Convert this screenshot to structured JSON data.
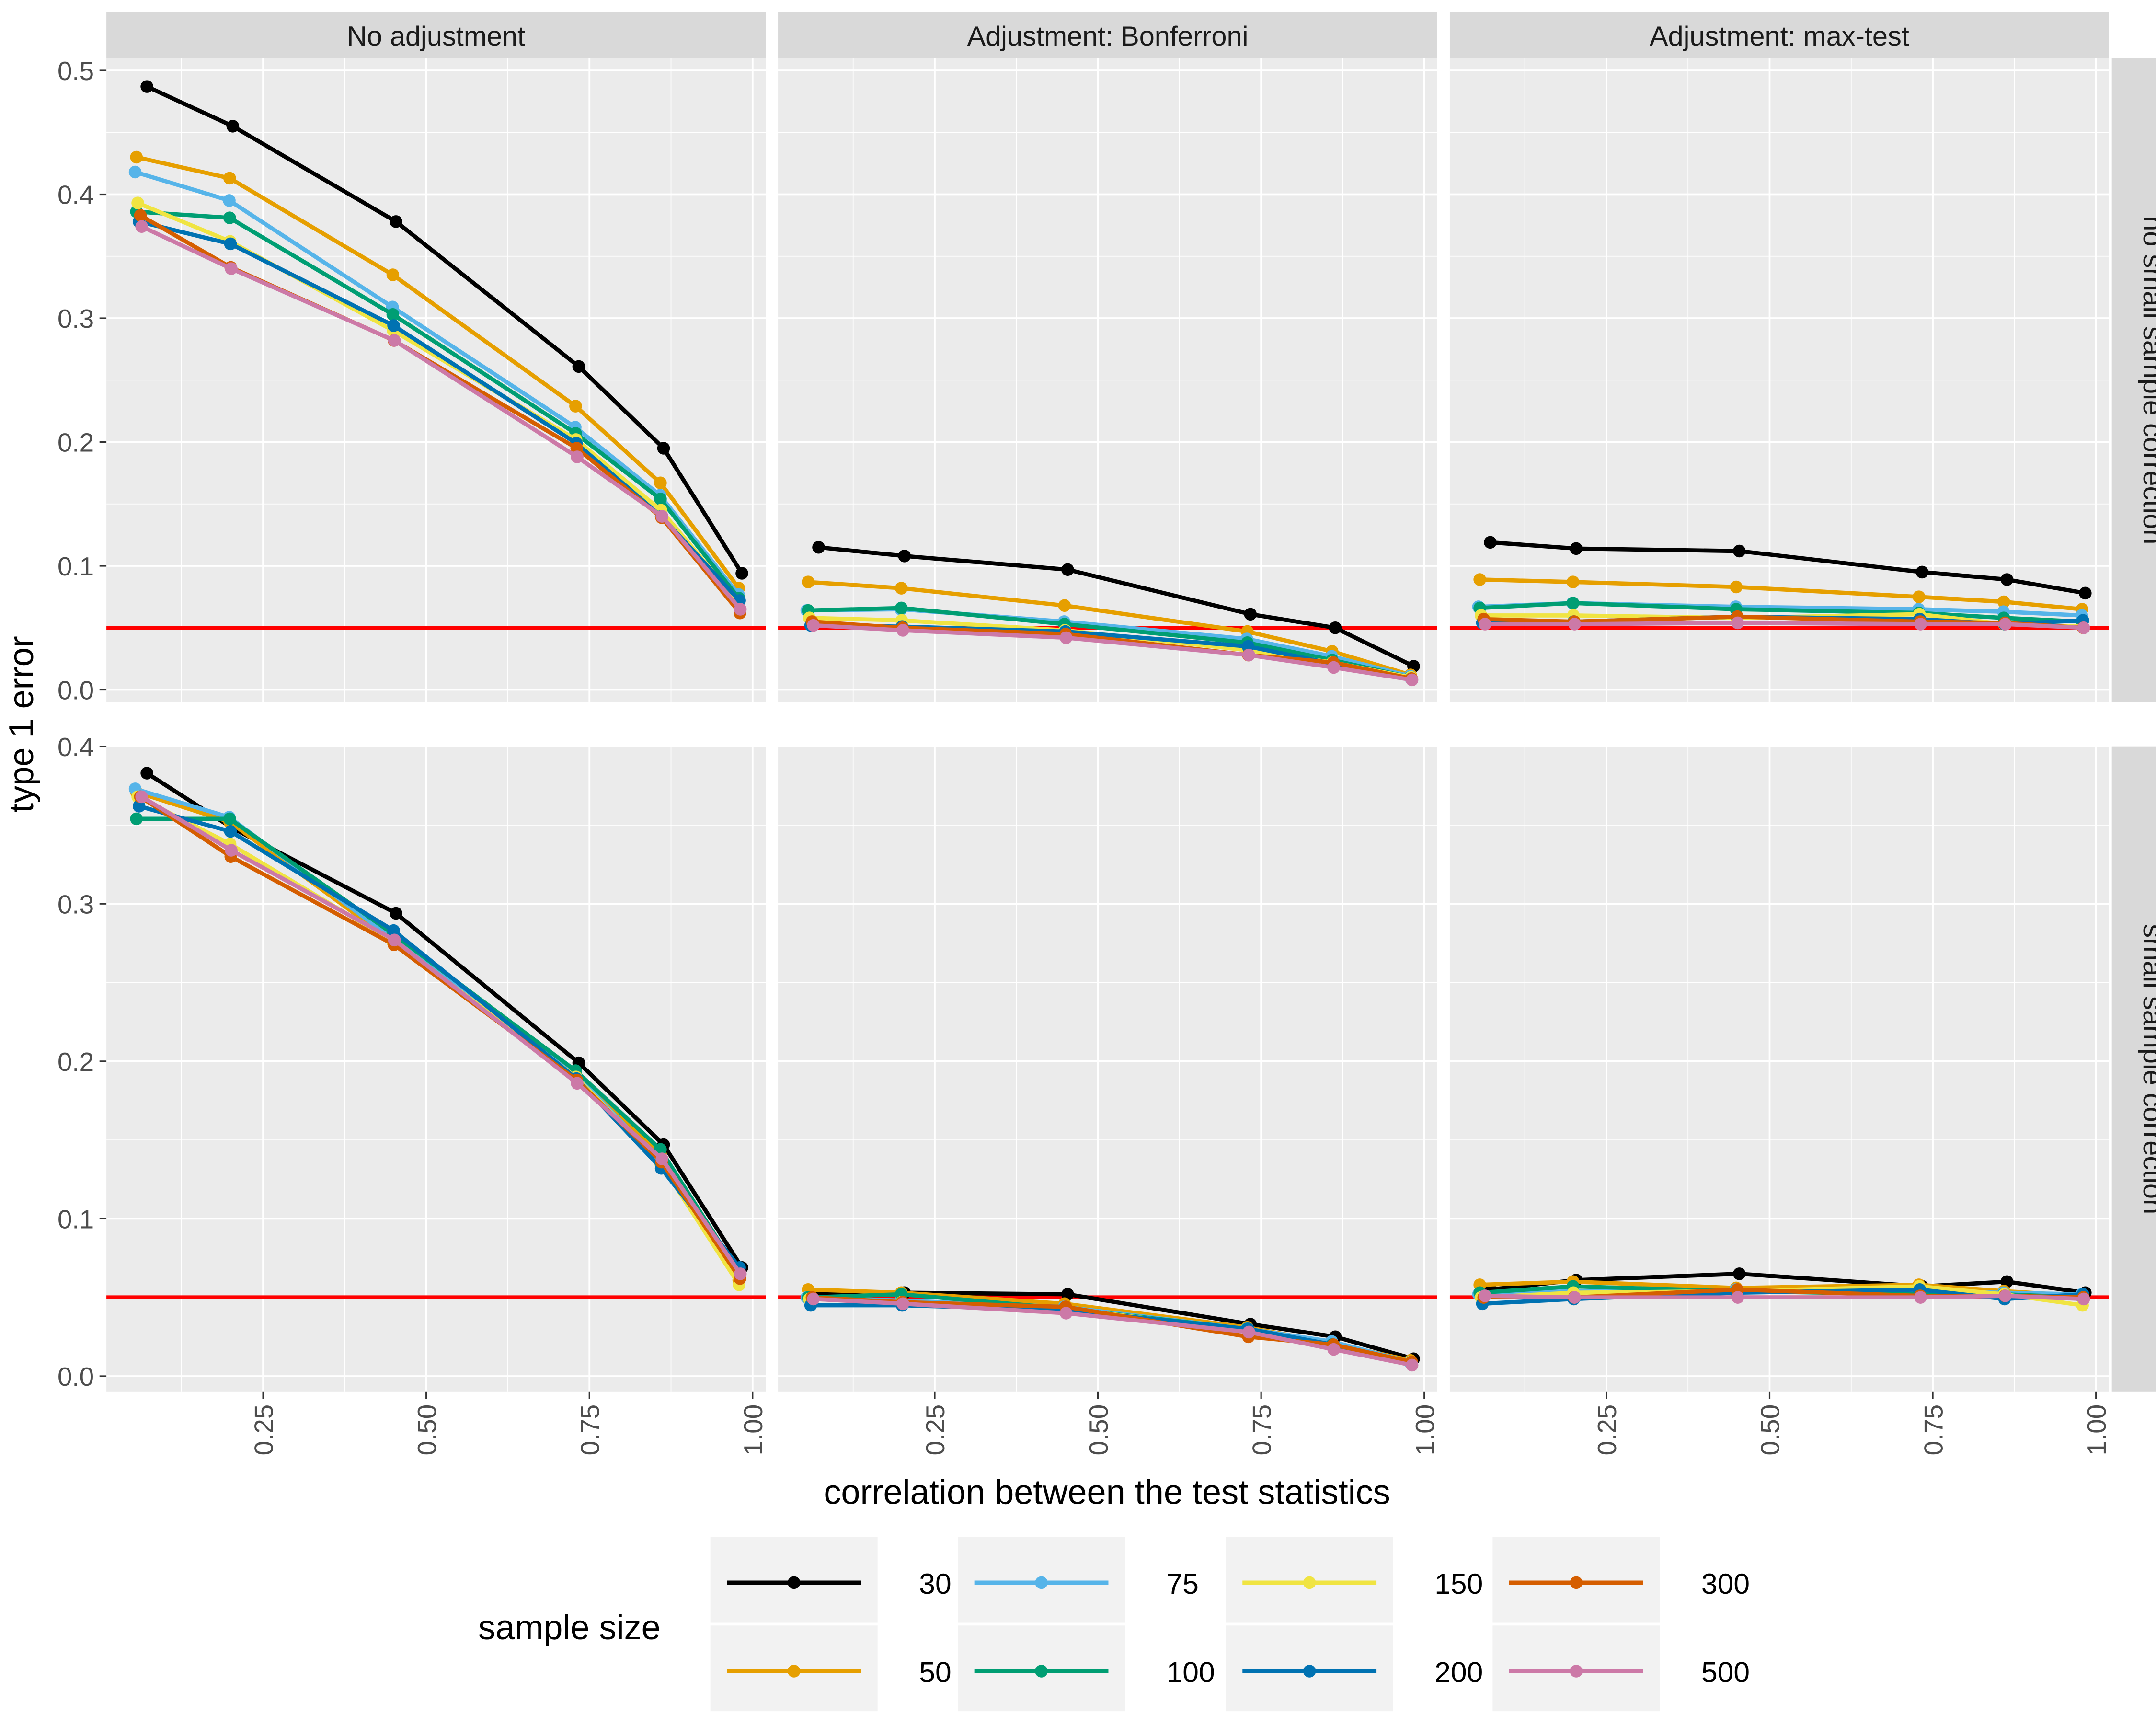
{
  "chart_data": {
    "type": "line",
    "xlabel": "correlation between the test statistics",
    "ylabel": "type 1 error",
    "reference_line": {
      "y": 0.05,
      "color": "#FF0000"
    },
    "grid": true,
    "legend": {
      "title": "sample size",
      "placement": "bottom",
      "entries": [
        {
          "label": "30",
          "color": "#000000"
        },
        {
          "label": "50",
          "color": "#E69F00"
        },
        {
          "label": "75",
          "color": "#56B4E9"
        },
        {
          "label": "100",
          "color": "#009E73"
        },
        {
          "label": "150",
          "color": "#F0E442"
        },
        {
          "label": "200",
          "color": "#0072B2"
        },
        {
          "label": "300",
          "color": "#D55E00"
        },
        {
          "label": "500",
          "color": "#CC79A7"
        }
      ]
    },
    "column_strips": [
      "No adjustment",
      "Adjustment: Bonferroni",
      "Adjustment: max-test"
    ],
    "row_strips": [
      "no small sample correction",
      "small sample correction"
    ],
    "x": [
      0.06,
      0.2,
      0.45,
      0.73,
      0.86,
      0.98
    ],
    "xlim": [
      0.01,
      1.02
    ],
    "x_ticks": [
      "0.25",
      "0.50",
      "0.75",
      "1.00"
    ],
    "x_tick_values": [
      0.25,
      0.5,
      0.75,
      1.0
    ],
    "rows": [
      {
        "ylim": [
          -0.01,
          0.51
        ],
        "y_ticks": [
          "0.0",
          "0.1",
          "0.2",
          "0.3",
          "0.4",
          "0.5"
        ],
        "y_tick_values": [
          0.0,
          0.1,
          0.2,
          0.3,
          0.4,
          0.5
        ]
      },
      {
        "ylim": [
          -0.01,
          0.4
        ],
        "y_ticks": [
          "0.0",
          "0.1",
          "0.2",
          "0.3",
          "0.4"
        ],
        "y_tick_values": [
          0.0,
          0.1,
          0.2,
          0.3,
          0.4
        ]
      }
    ],
    "panels": [
      {
        "row": 0,
        "col": 0,
        "series": [
          {
            "name": "30",
            "values": [
              0.487,
              0.455,
              0.378,
              0.261,
              0.195,
              0.094
            ]
          },
          {
            "name": "50",
            "values": [
              0.43,
              0.413,
              0.335,
              0.229,
              0.167,
              0.082
            ]
          },
          {
            "name": "75",
            "values": [
              0.418,
              0.395,
              0.309,
              0.212,
              0.157,
              0.077
            ]
          },
          {
            "name": "100",
            "values": [
              0.386,
              0.381,
              0.303,
              0.207,
              0.154,
              0.074
            ]
          },
          {
            "name": "150",
            "values": [
              0.393,
              0.362,
              0.29,
              0.202,
              0.145,
              0.07
            ]
          },
          {
            "name": "200",
            "values": [
              0.378,
              0.36,
              0.294,
              0.199,
              0.14,
              0.072
            ]
          },
          {
            "name": "300",
            "values": [
              0.383,
              0.341,
              0.282,
              0.195,
              0.139,
              0.062
            ]
          },
          {
            "name": "500",
            "values": [
              0.374,
              0.34,
              0.282,
              0.188,
              0.14,
              0.065
            ]
          }
        ]
      },
      {
        "row": 0,
        "col": 1,
        "series": [
          {
            "name": "30",
            "values": [
              0.115,
              0.108,
              0.097,
              0.061,
              0.05,
              0.019
            ]
          },
          {
            "name": "50",
            "values": [
              0.087,
              0.082,
              0.068,
              0.047,
              0.031,
              0.012
            ]
          },
          {
            "name": "75",
            "values": [
              0.064,
              0.065,
              0.055,
              0.041,
              0.027,
              0.011
            ]
          },
          {
            "name": "100",
            "values": [
              0.064,
              0.066,
              0.053,
              0.038,
              0.024,
              0.01
            ]
          },
          {
            "name": "150",
            "values": [
              0.058,
              0.056,
              0.048,
              0.032,
              0.022,
              0.01
            ]
          },
          {
            "name": "200",
            "values": [
              0.052,
              0.051,
              0.047,
              0.035,
              0.021,
              0.009
            ]
          },
          {
            "name": "300",
            "values": [
              0.055,
              0.05,
              0.045,
              0.028,
              0.022,
              0.009
            ]
          },
          {
            "name": "500",
            "values": [
              0.052,
              0.048,
              0.042,
              0.028,
              0.018,
              0.008
            ]
          }
        ]
      },
      {
        "row": 0,
        "col": 2,
        "series": [
          {
            "name": "30",
            "values": [
              0.119,
              0.114,
              0.112,
              0.095,
              0.089,
              0.078
            ]
          },
          {
            "name": "50",
            "values": [
              0.089,
              0.087,
              0.083,
              0.075,
              0.071,
              0.065
            ]
          },
          {
            "name": "75",
            "values": [
              0.067,
              0.07,
              0.067,
              0.065,
              0.063,
              0.06
            ]
          },
          {
            "name": "100",
            "values": [
              0.066,
              0.07,
              0.065,
              0.062,
              0.058,
              0.055
            ]
          },
          {
            "name": "150",
            "values": [
              0.06,
              0.06,
              0.058,
              0.061,
              0.053,
              0.051
            ]
          },
          {
            "name": "200",
            "values": [
              0.054,
              0.055,
              0.059,
              0.057,
              0.053,
              0.056
            ]
          },
          {
            "name": "300",
            "values": [
              0.057,
              0.055,
              0.059,
              0.055,
              0.054,
              0.05
            ]
          },
          {
            "name": "500",
            "values": [
              0.053,
              0.053,
              0.054,
              0.053,
              0.053,
              0.05
            ]
          }
        ]
      },
      {
        "row": 1,
        "col": 0,
        "series": [
          {
            "name": "30",
            "values": [
              0.383,
              0.348,
              0.294,
              0.199,
              0.147,
              0.069
            ]
          },
          {
            "name": "50",
            "values": [
              0.371,
              0.352,
              0.276,
              0.193,
              0.141,
              0.061
            ]
          },
          {
            "name": "75",
            "values": [
              0.373,
              0.355,
              0.278,
              0.192,
              0.136,
              0.064
            ]
          },
          {
            "name": "100",
            "values": [
              0.354,
              0.354,
              0.281,
              0.194,
              0.144,
              0.066
            ]
          },
          {
            "name": "150",
            "values": [
              0.368,
              0.338,
              0.276,
              0.19,
              0.135,
              0.058
            ]
          },
          {
            "name": "200",
            "values": [
              0.362,
              0.346,
              0.283,
              0.189,
              0.132,
              0.069
            ]
          },
          {
            "name": "300",
            "values": [
              0.368,
              0.33,
              0.274,
              0.188,
              0.136,
              0.062
            ]
          },
          {
            "name": "500",
            "values": [
              0.368,
              0.334,
              0.277,
              0.186,
              0.138,
              0.065
            ]
          }
        ]
      },
      {
        "row": 1,
        "col": 1,
        "series": [
          {
            "name": "30",
            "values": [
              0.052,
              0.053,
              0.052,
              0.033,
              0.025,
              0.011
            ]
          },
          {
            "name": "50",
            "values": [
              0.055,
              0.053,
              0.046,
              0.031,
              0.021,
              0.01
            ]
          },
          {
            "name": "75",
            "values": [
              0.05,
              0.048,
              0.044,
              0.03,
              0.022,
              0.009
            ]
          },
          {
            "name": "100",
            "values": [
              0.05,
              0.052,
              0.043,
              0.03,
              0.02,
              0.009
            ]
          },
          {
            "name": "150",
            "values": [
              0.049,
              0.047,
              0.043,
              0.029,
              0.019,
              0.009
            ]
          },
          {
            "name": "200",
            "values": [
              0.045,
              0.045,
              0.042,
              0.03,
              0.02,
              0.008
            ]
          },
          {
            "name": "300",
            "values": [
              0.05,
              0.047,
              0.044,
              0.025,
              0.02,
              0.009
            ]
          },
          {
            "name": "500",
            "values": [
              0.049,
              0.046,
              0.04,
              0.028,
              0.017,
              0.007
            ]
          }
        ]
      },
      {
        "row": 1,
        "col": 2,
        "series": [
          {
            "name": "30",
            "values": [
              0.055,
              0.061,
              0.065,
              0.057,
              0.06,
              0.053
            ]
          },
          {
            "name": "50",
            "values": [
              0.058,
              0.06,
              0.056,
              0.058,
              0.054,
              0.051
            ]
          },
          {
            "name": "75",
            "values": [
              0.052,
              0.054,
              0.055,
              0.054,
              0.053,
              0.052
            ]
          },
          {
            "name": "100",
            "values": [
              0.053,
              0.057,
              0.054,
              0.052,
              0.052,
              0.05
            ]
          },
          {
            "name": "150",
            "values": [
              0.05,
              0.053,
              0.054,
              0.057,
              0.052,
              0.045
            ]
          },
          {
            "name": "200",
            "values": [
              0.046,
              0.049,
              0.053,
              0.055,
              0.049,
              0.052
            ]
          },
          {
            "name": "300",
            "values": [
              0.05,
              0.05,
              0.055,
              0.051,
              0.051,
              0.05
            ]
          },
          {
            "name": "500",
            "values": [
              0.051,
              0.05,
              0.05,
              0.05,
              0.051,
              0.049
            ]
          }
        ]
      }
    ]
  }
}
